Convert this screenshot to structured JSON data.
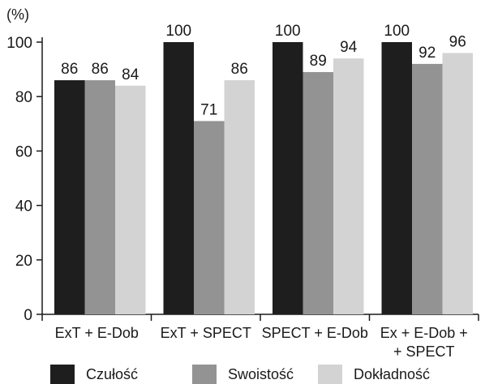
{
  "chart_data": {
    "type": "bar",
    "unit_label": "(%)",
    "categories": [
      [
        "ExT + E-Dob"
      ],
      [
        "ExT + SPECT"
      ],
      [
        "SPECT + E-Dob"
      ],
      [
        "Ex + E-Dob +",
        "+ SPECT"
      ]
    ],
    "series": [
      {
        "name": "Czułość",
        "color": "#1e1e1e",
        "values": [
          86,
          100,
          100,
          100
        ]
      },
      {
        "name": "Swoistość",
        "color": "#939393",
        "values": [
          86,
          71,
          89,
          92
        ]
      },
      {
        "name": "Dokładność",
        "color": "#d3d3d3",
        "values": [
          84,
          86,
          94,
          96
        ]
      }
    ],
    "ylim": [
      0,
      100
    ],
    "yticks": [
      "0",
      "20",
      "40",
      "60",
      "80",
      "100"
    ],
    "grid": false,
    "legend_position": "bottom"
  }
}
